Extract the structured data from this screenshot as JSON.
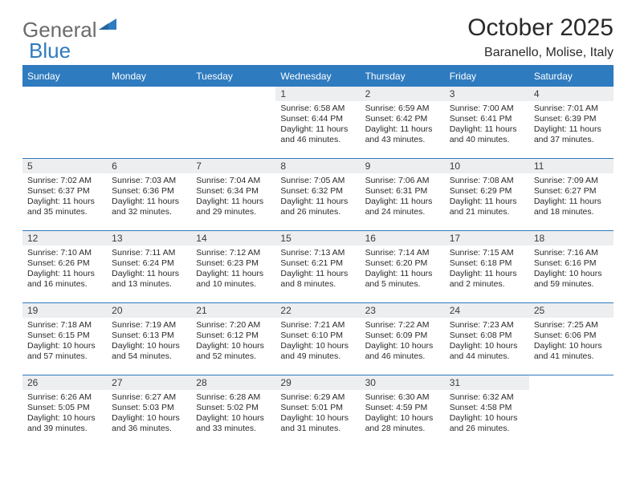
{
  "logo": {
    "text_a": "General",
    "text_b": "Blue",
    "mark_color": "#2f7bbf",
    "text_a_color": "#6b6b6b"
  },
  "title": "October 2025",
  "subtitle": "Baranello, Molise, Italy",
  "colors": {
    "header_bg": "#2f7bbf",
    "header_text": "#ffffff",
    "row_border": "#2f7bbf",
    "daynum_bg": "#eceef0",
    "body_text": "#2a2a2a",
    "page_bg": "#ffffff"
  },
  "fonts": {
    "title_size_pt": 30,
    "subtitle_size_pt": 16,
    "header_cell_pt": 12,
    "daynum_pt": 12,
    "body_pt": 10.5
  },
  "weekday_labels": [
    "Sunday",
    "Monday",
    "Tuesday",
    "Wednesday",
    "Thursday",
    "Friday",
    "Saturday"
  ],
  "weeks": [
    [
      null,
      null,
      null,
      {
        "n": "1",
        "sr": "6:58 AM",
        "ss": "6:44 PM",
        "dl": "11 hours and 46 minutes."
      },
      {
        "n": "2",
        "sr": "6:59 AM",
        "ss": "6:42 PM",
        "dl": "11 hours and 43 minutes."
      },
      {
        "n": "3",
        "sr": "7:00 AM",
        "ss": "6:41 PM",
        "dl": "11 hours and 40 minutes."
      },
      {
        "n": "4",
        "sr": "7:01 AM",
        "ss": "6:39 PM",
        "dl": "11 hours and 37 minutes."
      }
    ],
    [
      {
        "n": "5",
        "sr": "7:02 AM",
        "ss": "6:37 PM",
        "dl": "11 hours and 35 minutes."
      },
      {
        "n": "6",
        "sr": "7:03 AM",
        "ss": "6:36 PM",
        "dl": "11 hours and 32 minutes."
      },
      {
        "n": "7",
        "sr": "7:04 AM",
        "ss": "6:34 PM",
        "dl": "11 hours and 29 minutes."
      },
      {
        "n": "8",
        "sr": "7:05 AM",
        "ss": "6:32 PM",
        "dl": "11 hours and 26 minutes."
      },
      {
        "n": "9",
        "sr": "7:06 AM",
        "ss": "6:31 PM",
        "dl": "11 hours and 24 minutes."
      },
      {
        "n": "10",
        "sr": "7:08 AM",
        "ss": "6:29 PM",
        "dl": "11 hours and 21 minutes."
      },
      {
        "n": "11",
        "sr": "7:09 AM",
        "ss": "6:27 PM",
        "dl": "11 hours and 18 minutes."
      }
    ],
    [
      {
        "n": "12",
        "sr": "7:10 AM",
        "ss": "6:26 PM",
        "dl": "11 hours and 16 minutes."
      },
      {
        "n": "13",
        "sr": "7:11 AM",
        "ss": "6:24 PM",
        "dl": "11 hours and 13 minutes."
      },
      {
        "n": "14",
        "sr": "7:12 AM",
        "ss": "6:23 PM",
        "dl": "11 hours and 10 minutes."
      },
      {
        "n": "15",
        "sr": "7:13 AM",
        "ss": "6:21 PM",
        "dl": "11 hours and 8 minutes."
      },
      {
        "n": "16",
        "sr": "7:14 AM",
        "ss": "6:20 PM",
        "dl": "11 hours and 5 minutes."
      },
      {
        "n": "17",
        "sr": "7:15 AM",
        "ss": "6:18 PM",
        "dl": "11 hours and 2 minutes."
      },
      {
        "n": "18",
        "sr": "7:16 AM",
        "ss": "6:16 PM",
        "dl": "10 hours and 59 minutes."
      }
    ],
    [
      {
        "n": "19",
        "sr": "7:18 AM",
        "ss": "6:15 PM",
        "dl": "10 hours and 57 minutes."
      },
      {
        "n": "20",
        "sr": "7:19 AM",
        "ss": "6:13 PM",
        "dl": "10 hours and 54 minutes."
      },
      {
        "n": "21",
        "sr": "7:20 AM",
        "ss": "6:12 PM",
        "dl": "10 hours and 52 minutes."
      },
      {
        "n": "22",
        "sr": "7:21 AM",
        "ss": "6:10 PM",
        "dl": "10 hours and 49 minutes."
      },
      {
        "n": "23",
        "sr": "7:22 AM",
        "ss": "6:09 PM",
        "dl": "10 hours and 46 minutes."
      },
      {
        "n": "24",
        "sr": "7:23 AM",
        "ss": "6:08 PM",
        "dl": "10 hours and 44 minutes."
      },
      {
        "n": "25",
        "sr": "7:25 AM",
        "ss": "6:06 PM",
        "dl": "10 hours and 41 minutes."
      }
    ],
    [
      {
        "n": "26",
        "sr": "6:26 AM",
        "ss": "5:05 PM",
        "dl": "10 hours and 39 minutes."
      },
      {
        "n": "27",
        "sr": "6:27 AM",
        "ss": "5:03 PM",
        "dl": "10 hours and 36 minutes."
      },
      {
        "n": "28",
        "sr": "6:28 AM",
        "ss": "5:02 PM",
        "dl": "10 hours and 33 minutes."
      },
      {
        "n": "29",
        "sr": "6:29 AM",
        "ss": "5:01 PM",
        "dl": "10 hours and 31 minutes."
      },
      {
        "n": "30",
        "sr": "6:30 AM",
        "ss": "4:59 PM",
        "dl": "10 hours and 28 minutes."
      },
      {
        "n": "31",
        "sr": "6:32 AM",
        "ss": "4:58 PM",
        "dl": "10 hours and 26 minutes."
      },
      null
    ]
  ],
  "labels": {
    "sunrise": "Sunrise:",
    "sunset": "Sunset:",
    "daylight": "Daylight:"
  }
}
